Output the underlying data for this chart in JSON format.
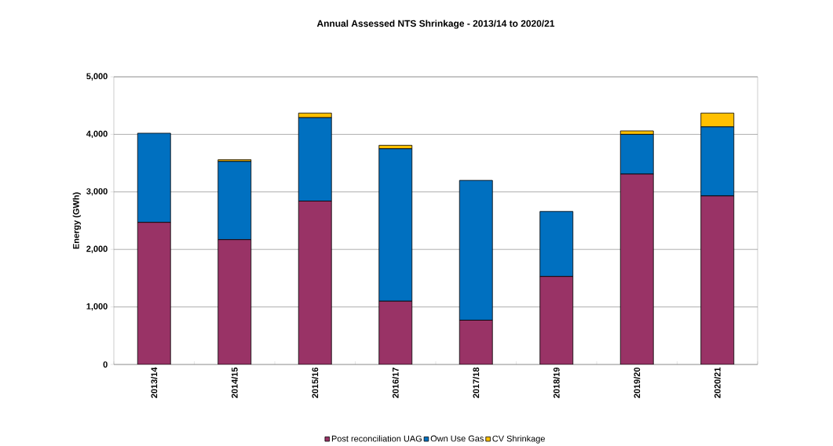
{
  "chart_data": {
    "type": "bar",
    "title": "Annual Assessed NTS Shrinkage - 2013/14 to 2020/21",
    "ylabel": "Energy (GWh)",
    "categories": [
      "2013/14",
      "2014/15",
      "2015/16",
      "2016/17",
      "2017/18",
      "2018/19",
      "2019/20",
      "2020/21"
    ],
    "series": [
      {
        "name": "Post reconciliation UAG",
        "color": "#993366",
        "values": [
          2470,
          2170,
          2840,
          1100,
          770,
          1530,
          3310,
          2930
        ]
      },
      {
        "name": "Own Use Gas",
        "color": "#0070c0",
        "values": [
          1550,
          1360,
          1450,
          2650,
          2430,
          1130,
          690,
          1200
        ]
      },
      {
        "name": "CV Shrinkage",
        "color": "#ffc000",
        "values": [
          null,
          30,
          80,
          60,
          null,
          null,
          60,
          240
        ]
      }
    ],
    "stacked": true,
    "ylim": [
      0,
      5000
    ],
    "yticks": [
      0,
      {
        "value": 1000,
        "label": "1,000"
      },
      {
        "value": 2000,
        "label": "2,000"
      },
      {
        "value": 3000,
        "label": "3,000"
      },
      {
        "value": 4000,
        "label": "4,000"
      },
      {
        "value": 5000,
        "label": "5,000"
      }
    ],
    "grid": true,
    "legend": "bottom"
  }
}
